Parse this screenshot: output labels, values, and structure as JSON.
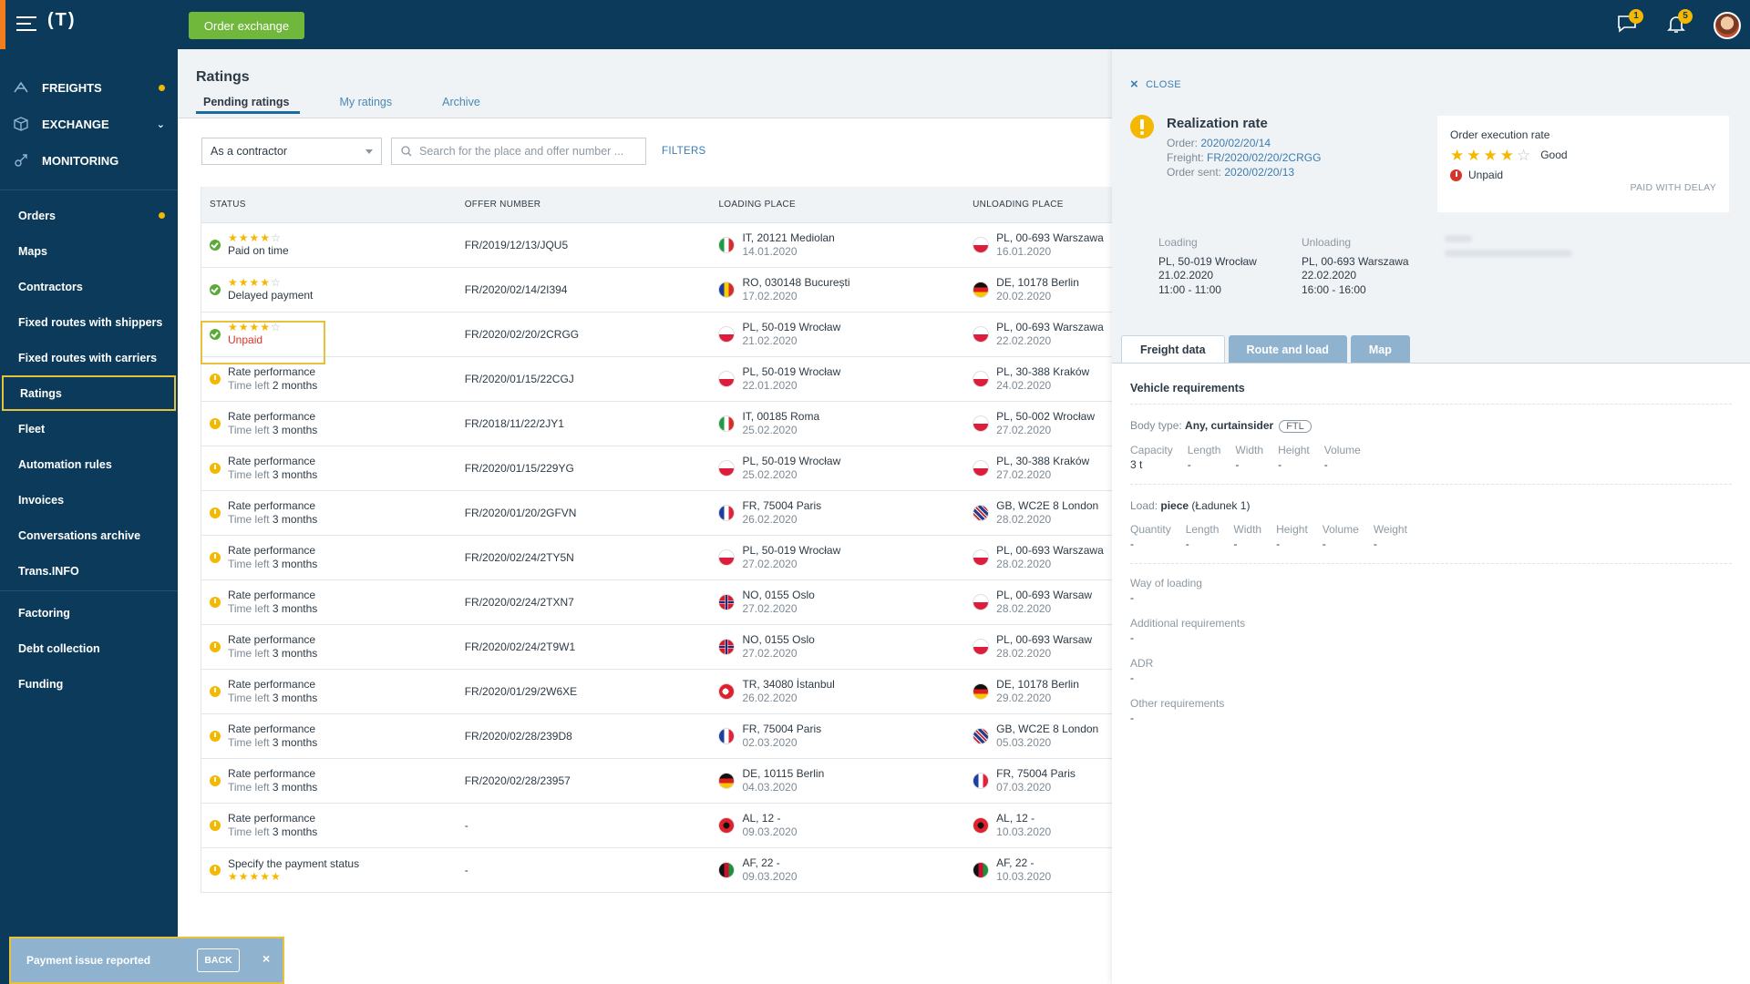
{
  "topbar": {
    "logo": "(T)",
    "order_exchange_label": "Order exchange",
    "messages_badge": "1",
    "notifications_badge": "5"
  },
  "sidebar": {
    "main": [
      {
        "label": "FREIGHTS",
        "icon": "freights-icon",
        "dot": true
      },
      {
        "label": "EXCHANGE",
        "icon": "exchange-box-icon",
        "chevron": true
      },
      {
        "label": "MONITORING",
        "icon": "monitoring-icon"
      }
    ],
    "items": [
      {
        "label": "Orders",
        "dot": true
      },
      {
        "label": "Maps"
      },
      {
        "label": "Contractors"
      },
      {
        "label": "Fixed routes with shippers"
      },
      {
        "label": "Fixed routes with carriers"
      },
      {
        "label": "Ratings",
        "active": true
      },
      {
        "label": "Fleet"
      },
      {
        "label": "Automation rules"
      },
      {
        "label": "Invoices"
      },
      {
        "label": "Conversations archive"
      },
      {
        "label": "Trans.INFO"
      },
      {
        "label": "Factoring"
      },
      {
        "label": "Debt collection"
      },
      {
        "label": "Funding"
      }
    ]
  },
  "page": {
    "title": "Ratings",
    "tabs": [
      "Pending ratings",
      "My ratings",
      "Archive"
    ],
    "role_select": "As a contractor",
    "search_placeholder": "Search for the place and offer number ...",
    "filters_label": "FILTERS"
  },
  "table": {
    "headers": [
      "STATUS",
      "OFFER NUMBER",
      "LOADING PLACE",
      "UNLOADING PLACE"
    ],
    "rows": [
      {
        "status": "ok",
        "rating": 4,
        "line1": "",
        "line2": "Paid on time",
        "offer": "FR/2019/12/13/JQU5",
        "load_flag": "IT",
        "load_place": "IT, 20121 Mediolan",
        "load_date": "14.01.2020",
        "unload_flag": "PL",
        "unload_place": "PL, 00-693 Warszawa",
        "unload_date": "16.01.2020"
      },
      {
        "status": "ok",
        "rating": 4,
        "line1": "",
        "line2": "Delayed payment",
        "offer": "FR/2020/02/14/2I394",
        "load_flag": "RO",
        "load_place": "RO, 030148 București",
        "load_date": "17.02.2020",
        "unload_flag": "DE",
        "unload_place": "DE, 10178 Berlin",
        "unload_date": "20.02.2020"
      },
      {
        "status": "ok",
        "rating": 4,
        "line1": "",
        "line2": "Unpaid",
        "red": true,
        "highlight": true,
        "offer": "FR/2020/02/20/2CRGG",
        "load_flag": "PL",
        "load_place": "PL, 50-019 Wrocław",
        "load_date": "21.02.2020",
        "unload_flag": "PL",
        "unload_place": "PL, 00-693 Warszawa",
        "unload_date": "22.02.2020"
      },
      {
        "status": "warn",
        "line1": "Rate performance",
        "line2_pre": "Time left ",
        "line2_val": "2 months",
        "offer": "FR/2020/01/15/22CGJ",
        "load_flag": "PL",
        "load_place": "PL, 50-019 Wrocław",
        "load_date": "22.01.2020",
        "unload_flag": "PL",
        "unload_place": "PL, 30-388 Kraków",
        "unload_date": "24.02.2020"
      },
      {
        "status": "warn",
        "line1": "Rate performance",
        "line2_pre": "Time left ",
        "line2_val": "3 months",
        "offer": "FR/2018/11/22/2JY1",
        "load_flag": "IT",
        "load_place": "IT, 00185 Roma",
        "load_date": "25.02.2020",
        "unload_flag": "PL",
        "unload_place": "PL, 50-002 Wrocław",
        "unload_date": "27.02.2020"
      },
      {
        "status": "warn",
        "line1": "Rate performance",
        "line2_pre": "Time left ",
        "line2_val": "3 months",
        "offer": "FR/2020/01/15/229YG",
        "load_flag": "PL",
        "load_place": "PL, 50-019 Wrocław",
        "load_date": "25.02.2020",
        "unload_flag": "PL",
        "unload_place": "PL, 30-388 Kraków",
        "unload_date": "27.02.2020"
      },
      {
        "status": "warn",
        "line1": "Rate performance",
        "line2_pre": "Time left ",
        "line2_val": "3 months",
        "offer": "FR/2020/01/20/2GFVN",
        "load_flag": "FR",
        "load_place": "FR, 75004 Paris",
        "load_date": "26.02.2020",
        "unload_flag": "GB",
        "unload_place": "GB, WC2E 8 London",
        "unload_date": "28.02.2020"
      },
      {
        "status": "warn",
        "line1": "Rate performance",
        "line2_pre": "Time left ",
        "line2_val": "3 months",
        "offer": "FR/2020/02/24/2TY5N",
        "load_flag": "PL",
        "load_place": "PL, 50-019 Wrocław",
        "load_date": "27.02.2020",
        "unload_flag": "PL",
        "unload_place": "PL, 00-693 Warszawa",
        "unload_date": "28.02.2020"
      },
      {
        "status": "warn",
        "line1": "Rate performance",
        "line2_pre": "Time left ",
        "line2_val": "3 months",
        "offer": "FR/2020/02/24/2TXN7",
        "load_flag": "NO",
        "load_place": "NO, 0155 Oslo",
        "load_date": "27.02.2020",
        "unload_flag": "PL",
        "unload_place": "PL, 00-693 Warsaw",
        "unload_date": "28.02.2020"
      },
      {
        "status": "warn",
        "line1": "Rate performance",
        "line2_pre": "Time left ",
        "line2_val": "3 months",
        "offer": "FR/2020/02/24/2T9W1",
        "load_flag": "NO",
        "load_place": "NO, 0155 Oslo",
        "load_date": "27.02.2020",
        "unload_flag": "PL",
        "unload_place": "PL, 00-693 Warsaw",
        "unload_date": "28.02.2020"
      },
      {
        "status": "warn",
        "line1": "Rate performance",
        "line2_pre": "Time left ",
        "line2_val": "3 months",
        "offer": "FR/2020/01/29/2W6XE",
        "load_flag": "TR",
        "load_place": "TR, 34080 İstanbul",
        "load_date": "26.02.2020",
        "unload_flag": "DE",
        "unload_place": "DE, 10178 Berlin",
        "unload_date": "29.02.2020"
      },
      {
        "status": "warn",
        "line1": "Rate performance",
        "line2_pre": "Time left ",
        "line2_val": "3 months",
        "offer": "FR/2020/02/28/239D8",
        "load_flag": "FR",
        "load_place": "FR, 75004 Paris",
        "load_date": "02.03.2020",
        "unload_flag": "GB",
        "unload_place": "GB, WC2E 8 London",
        "unload_date": "05.03.2020"
      },
      {
        "status": "warn",
        "line1": "Rate performance",
        "line2_pre": "Time left ",
        "line2_val": "3 months",
        "offer": "FR/2020/02/28/23957",
        "load_flag": "DE",
        "load_place": "DE, 10115 Berlin",
        "load_date": "04.03.2020",
        "unload_flag": "FR",
        "unload_place": "FR, 75004 Paris",
        "unload_date": "07.03.2020"
      },
      {
        "status": "warn",
        "line1": "Rate performance",
        "line2_pre": "Time left ",
        "line2_val": "3 months",
        "offer": "-",
        "load_flag": "AL",
        "load_place": "AL, 12 -",
        "load_date": "09.03.2020",
        "unload_flag": "AL",
        "unload_place": "AL, 12 -",
        "unload_date": "10.03.2020"
      },
      {
        "status": "warn",
        "line1": "Specify the payment status",
        "rating_below": 5,
        "offer": "-",
        "load_flag": "AF",
        "load_place": "AF, 22 -",
        "load_date": "09.03.2020",
        "unload_flag": "AF",
        "unload_place": "AF, 22 -",
        "unload_date": "10.03.2020"
      }
    ]
  },
  "panel": {
    "close_label": "CLOSE",
    "title": "Realization rate",
    "order_label": "Order: ",
    "order_value": "2020/02/20/14",
    "freight_label": "Freight: ",
    "freight_value": "FR/2020/02/20/2CRGG",
    "sent_label": "Order sent: ",
    "sent_value": "2020/02/20/13",
    "exec_title": "Order execution rate",
    "exec_rating": 4,
    "exec_rating_label": "Good",
    "exec_payment": "Unpaid",
    "exec_paid_status": "PAID WITH DELAY",
    "loading_title": "Loading",
    "loading_place": "PL, 50-019 Wrocław",
    "loading_date": "21.02.2020",
    "loading_time": "11:00 - 11:00",
    "unloading_title": "Unloading",
    "unloading_place": "PL, 00-693 Warszawa",
    "unloading_date": "22.02.2020",
    "unloading_time": "16:00 - 16:00",
    "tabs": [
      "Freight data",
      "Route and load",
      "Map"
    ],
    "vehicle_title": "Vehicle requirements",
    "body_type_label": "Body type: ",
    "body_type_value": "Any, curtainsider",
    "ftl": "FTL",
    "vehicle_grid": [
      {
        "label": "Capacity",
        "value": "3 t"
      },
      {
        "label": "Length",
        "value": "-"
      },
      {
        "label": "Width",
        "value": "-"
      },
      {
        "label": "Height",
        "value": "-"
      },
      {
        "label": "Volume",
        "value": "-"
      }
    ],
    "load_label": "Load: ",
    "load_value": "piece",
    "load_extra": " (Ładunek 1)",
    "load_grid": [
      {
        "label": "Quantity",
        "value": "-"
      },
      {
        "label": "Length",
        "value": "-"
      },
      {
        "label": "Width",
        "value": "-"
      },
      {
        "label": "Height",
        "value": "-"
      },
      {
        "label": "Volume",
        "value": "-"
      },
      {
        "label": "Weight",
        "value": "-"
      }
    ],
    "fields": [
      {
        "label": "Way of loading",
        "value": "-"
      },
      {
        "label": "Additional requirements",
        "value": "-"
      },
      {
        "label": "ADR",
        "value": "-"
      },
      {
        "label": "Other requirements",
        "value": "-"
      }
    ]
  },
  "toast": {
    "message": "Payment issue reported",
    "back_label": "BACK",
    "close": "×"
  }
}
